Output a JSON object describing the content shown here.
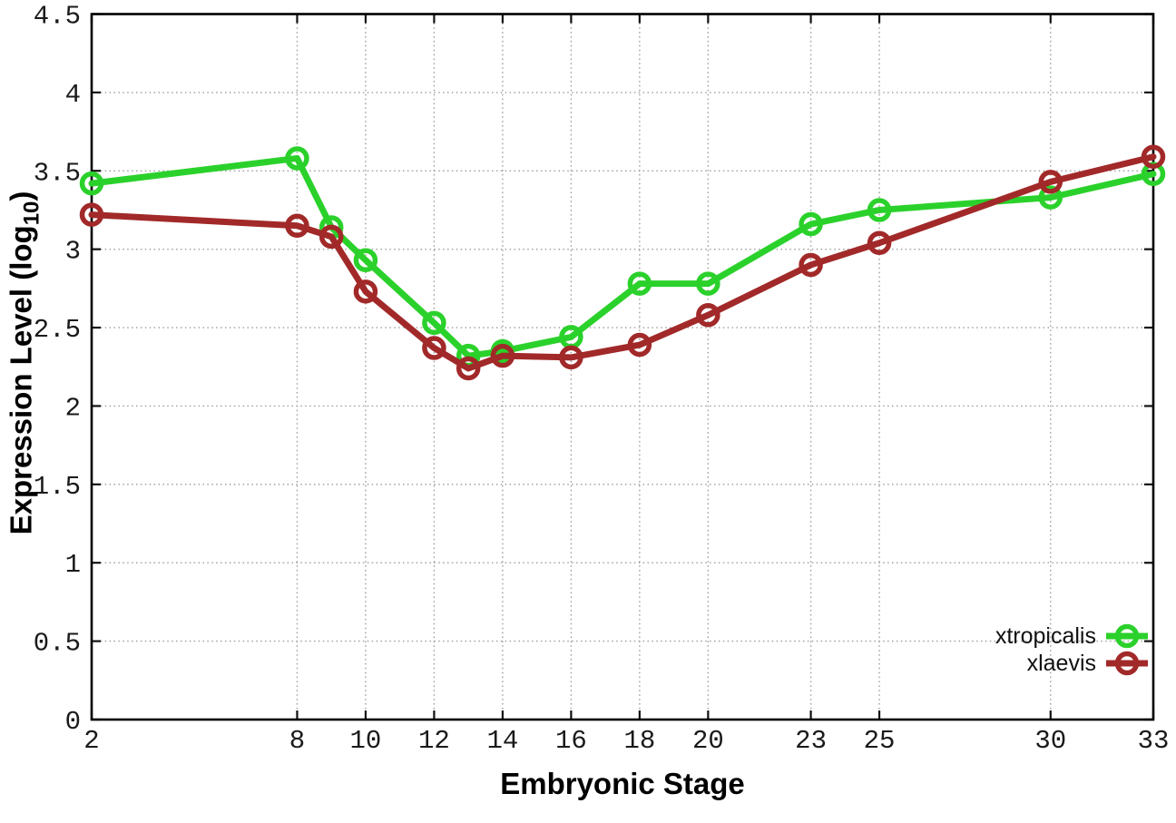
{
  "figure": {
    "background": "#ffffff",
    "border_color": "#000000",
    "grid_color": "#9b9b9b",
    "tick_color": "#111111",
    "tick_label_color": "#1a1a1a"
  },
  "chart_data": {
    "type": "line",
    "title": "",
    "xlabel": "Embryonic Stage",
    "ylabel": "Expression Level (log10)",
    "ylabel_main": "Expression Level (log",
    "ylabel_sub": "10",
    "ylabel_suffix": ")",
    "x": [
      2,
      8,
      9,
      10,
      12,
      13,
      14,
      16,
      18,
      20,
      23,
      25,
      30,
      33
    ],
    "xlim": [
      2,
      33
    ],
    "x_tick_values": [
      2,
      8,
      10,
      12,
      14,
      16,
      18,
      20,
      23,
      25,
      30,
      33
    ],
    "x_tick_labels": [
      "2",
      "8",
      "10",
      "12",
      "14",
      "16",
      "18",
      "20",
      "23",
      "25",
      "30",
      "33"
    ],
    "ylim": [
      0,
      4.5
    ],
    "y_tick_values": [
      0,
      0.5,
      1,
      1.5,
      2,
      2.5,
      3,
      3.5,
      4,
      4.5
    ],
    "y_tick_labels": [
      "0",
      "0.5",
      "1",
      "1.5",
      "2",
      "2.5",
      "3",
      "3.5",
      "4",
      "4.5"
    ],
    "grid": true,
    "legend_position": "bottom-right",
    "marker": "open-circle",
    "series": [
      {
        "name": "xtropicalis",
        "color": "#2bd12b",
        "values": [
          3.42,
          3.58,
          3.14,
          2.93,
          2.53,
          2.32,
          2.35,
          2.44,
          2.78,
          2.78,
          3.16,
          3.25,
          3.33,
          3.48
        ]
      },
      {
        "name": "xlaevis",
        "color": "#a22929",
        "values": [
          3.22,
          3.15,
          3.08,
          2.73,
          2.37,
          2.24,
          2.32,
          2.31,
          2.39,
          2.58,
          2.9,
          3.04,
          3.43,
          3.59
        ]
      }
    ]
  }
}
